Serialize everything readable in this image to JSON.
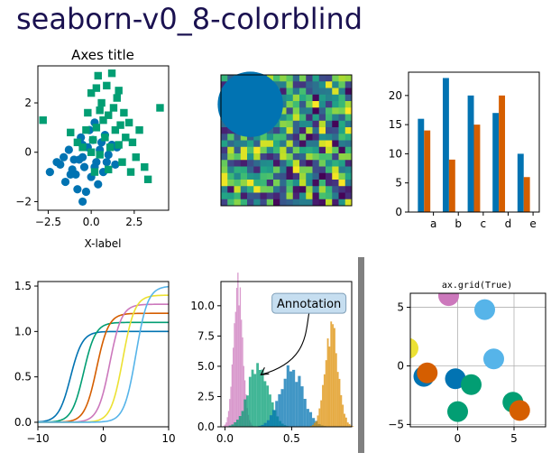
{
  "figure_title": "seaborn-v0_8-colorblind",
  "palette": [
    "#0173b2",
    "#de8f05",
    "#029e73",
    "#d55e00",
    "#cc78bc",
    "#ca9161",
    "#fbafe4",
    "#949494",
    "#ece133",
    "#56b4e9"
  ],
  "chart_data": [
    {
      "type": "scatter",
      "panel": "scatter",
      "title": "Axes title",
      "xlabel": "X-label",
      "ylabel": "Y-label",
      "xlim": [
        -3.1,
        4.5
      ],
      "ylim": [
        -2.35,
        3.5
      ],
      "xticks": [
        -2.5,
        0.0,
        2.5
      ],
      "xtick_labels": [
        "−2.5",
        "0.0",
        "2.5"
      ],
      "yticks": [
        -2,
        0,
        2
      ],
      "ytick_labels": [
        "−2",
        "0",
        "2"
      ],
      "series": [
        {
          "marker": "circle",
          "color": "#0173b2",
          "points": [
            [
              -2.4,
              -0.8
            ],
            [
              -1.8,
              -0.5
            ],
            [
              -1.5,
              -1.2
            ],
            [
              -1.2,
              -0.9
            ],
            [
              -1.0,
              -0.3
            ],
            [
              -0.8,
              -1.5
            ],
            [
              -0.5,
              -2.0
            ],
            [
              -0.5,
              -0.2
            ],
            [
              -0.4,
              -0.6
            ],
            [
              -0.2,
              0.2
            ],
            [
              0.0,
              -1.0
            ],
            [
              0.1,
              0.5
            ],
            [
              0.3,
              -0.4
            ],
            [
              0.5,
              0.1
            ],
            [
              0.7,
              -0.8
            ],
            [
              0.8,
              0.7
            ],
            [
              1.0,
              -0.1
            ],
            [
              1.2,
              0.3
            ],
            [
              -0.6,
              0.6
            ],
            [
              -1.3,
              0.1
            ],
            [
              0.2,
              1.2
            ],
            [
              -0.9,
              -0.9
            ],
            [
              0.4,
              -1.3
            ],
            [
              -1.6,
              -0.2
            ],
            [
              1.4,
              -0.5
            ],
            [
              -0.1,
              0.9
            ],
            [
              0.6,
              0.4
            ],
            [
              -0.7,
              -0.3
            ],
            [
              -1.1,
              -0.7
            ],
            [
              0.9,
              -0.4
            ],
            [
              -0.3,
              -1.6
            ],
            [
              0.2,
              -0.6
            ],
            [
              -2.0,
              -0.4
            ],
            [
              1.5,
              0.2
            ],
            [
              -0.5,
              0.3
            ]
          ]
        },
        {
          "marker": "square",
          "color": "#029e73",
          "points": [
            [
              -2.8,
              1.3
            ],
            [
              -1.2,
              0.8
            ],
            [
              -0.5,
              0.2
            ],
            [
              -0.2,
              1.6
            ],
            [
              0.0,
              2.4
            ],
            [
              0.1,
              0.5
            ],
            [
              0.3,
              1.0
            ],
            [
              0.4,
              3.1
            ],
            [
              0.5,
              -0.1
            ],
            [
              0.6,
              2.0
            ],
            [
              0.7,
              1.3
            ],
            [
              0.8,
              0.6
            ],
            [
              0.9,
              2.7
            ],
            [
              1.0,
              1.5
            ],
            [
              1.1,
              0.2
            ],
            [
              1.2,
              3.2
            ],
            [
              1.3,
              1.8
            ],
            [
              1.4,
              0.9
            ],
            [
              1.5,
              2.2
            ],
            [
              1.6,
              0.3
            ],
            [
              1.7,
              1.1
            ],
            [
              1.8,
              -0.4
            ],
            [
              1.9,
              1.6
            ],
            [
              2.0,
              0.6
            ],
            [
              2.2,
              1.2
            ],
            [
              2.4,
              0.4
            ],
            [
              2.6,
              -0.2
            ],
            [
              2.8,
              0.9
            ],
            [
              3.1,
              -0.6
            ],
            [
              3.3,
              -1.1
            ],
            [
              4.0,
              1.8
            ],
            [
              0.2,
              -0.8
            ],
            [
              0.5,
              1.7
            ],
            [
              -0.3,
              0.9
            ],
            [
              1.0,
              -0.7
            ],
            [
              2.3,
              -0.8
            ],
            [
              -0.8,
              0.4
            ],
            [
              0.0,
              0.0
            ],
            [
              1.6,
              2.5
            ],
            [
              0.3,
              2.6
            ]
          ]
        }
      ]
    },
    {
      "type": "heatmap",
      "panel": "image",
      "rows": 20,
      "cols": 20,
      "colormap": "viridis",
      "overlay_circle": {
        "cx": 4,
        "cy": 4,
        "r": 5,
        "color": "#0173b2"
      }
    },
    {
      "type": "bar",
      "panel": "bars",
      "categories": [
        "a",
        "b",
        "c",
        "d",
        "e"
      ],
      "ylim": [
        0,
        24
      ],
      "yticks": [
        0,
        5,
        10,
        15,
        20
      ],
      "series": [
        {
          "color": "#0173b2",
          "values": [
            16,
            23,
            20,
            17,
            10
          ]
        },
        {
          "color": "#d55e00",
          "values": [
            14,
            9,
            15,
            20,
            6
          ]
        }
      ]
    },
    {
      "type": "line",
      "panel": "sigmoids",
      "xlim": [
        -10,
        10
      ],
      "ylim": [
        -0.05,
        1.55
      ],
      "xticks": [
        -10,
        0,
        10
      ],
      "xtick_labels": [
        "−10",
        "0",
        "10"
      ],
      "yticks": [
        0.0,
        0.5,
        1.0,
        1.5
      ],
      "ytick_labels": [
        "0.0",
        "0.5",
        "1.0",
        "1.5"
      ],
      "series": [
        {
          "color": "#0173b2",
          "center": -5,
          "amplitude": 1.0
        },
        {
          "color": "#029e73",
          "center": -3,
          "amplitude": 1.1
        },
        {
          "color": "#d55e00",
          "center": -1,
          "amplitude": 1.2
        },
        {
          "color": "#cc78bc",
          "center": 1,
          "amplitude": 1.3
        },
        {
          "color": "#ece133",
          "center": 3,
          "amplitude": 1.4
        },
        {
          "color": "#56b4e9",
          "center": 5,
          "amplitude": 1.5
        }
      ]
    },
    {
      "type": "histogram",
      "panel": "histograms",
      "xlim": [
        -0.03,
        0.95
      ],
      "ylim": [
        0,
        12
      ],
      "xticks": [
        0.0,
        0.5
      ],
      "xtick_labels": [
        "0.0",
        "0.5"
      ],
      "yticks": [
        0.0,
        2.5,
        5.0,
        7.5,
        10.0
      ],
      "ytick_labels": [
        "0.0",
        "2.5",
        "5.0",
        "7.5",
        "10.0"
      ],
      "annotation": {
        "text": "Annotation",
        "xy": [
          0.27,
          4.3
        ],
        "xytext": [
          0.63,
          10.2
        ]
      },
      "series": [
        {
          "color": "#cc78bc",
          "mean": 0.1,
          "sd": 0.035,
          "peak": 11.2
        },
        {
          "color": "#029e73",
          "mean": 0.25,
          "sd": 0.075,
          "peak": 5.2
        },
        {
          "color": "#0173b2",
          "mean": 0.5,
          "sd": 0.085,
          "peak": 4.7
        },
        {
          "color": "#de8f05",
          "mean": 0.8,
          "sd": 0.05,
          "peak": 7.9
        }
      ]
    },
    {
      "type": "scatter",
      "panel": "grid-scatter",
      "title": "ax.grid(True)",
      "xlim": [
        -4.2,
        7.8
      ],
      "ylim": [
        -5.2,
        6.2
      ],
      "xticks": [
        0,
        5
      ],
      "xtick_labels": [
        "0",
        "5"
      ],
      "yticks": [
        -5,
        0,
        5
      ],
      "ytick_labels": [
        "−5",
        "0",
        "5"
      ],
      "points": [
        {
          "x": -3.0,
          "y": -0.9,
          "color": "#0173b2"
        },
        {
          "x": -2.7,
          "y": -0.6,
          "color": "#d55e00"
        },
        {
          "x": -0.2,
          "y": -1.1,
          "color": "#0173b2"
        },
        {
          "x": 1.2,
          "y": -1.6,
          "color": "#029e73"
        },
        {
          "x": 0.0,
          "y": -3.9,
          "color": "#029e73"
        },
        {
          "x": 2.4,
          "y": 4.8,
          "color": "#56b4e9"
        },
        {
          "x": 3.2,
          "y": 0.6,
          "color": "#56b4e9"
        },
        {
          "x": -0.8,
          "y": 6.0,
          "color": "#cc78bc"
        },
        {
          "x": 4.9,
          "y": -3.1,
          "color": "#029e73"
        },
        {
          "x": 5.5,
          "y": -3.8,
          "color": "#d55e00"
        },
        {
          "x": -4.4,
          "y": 1.5,
          "color": "#ece133"
        }
      ]
    }
  ]
}
